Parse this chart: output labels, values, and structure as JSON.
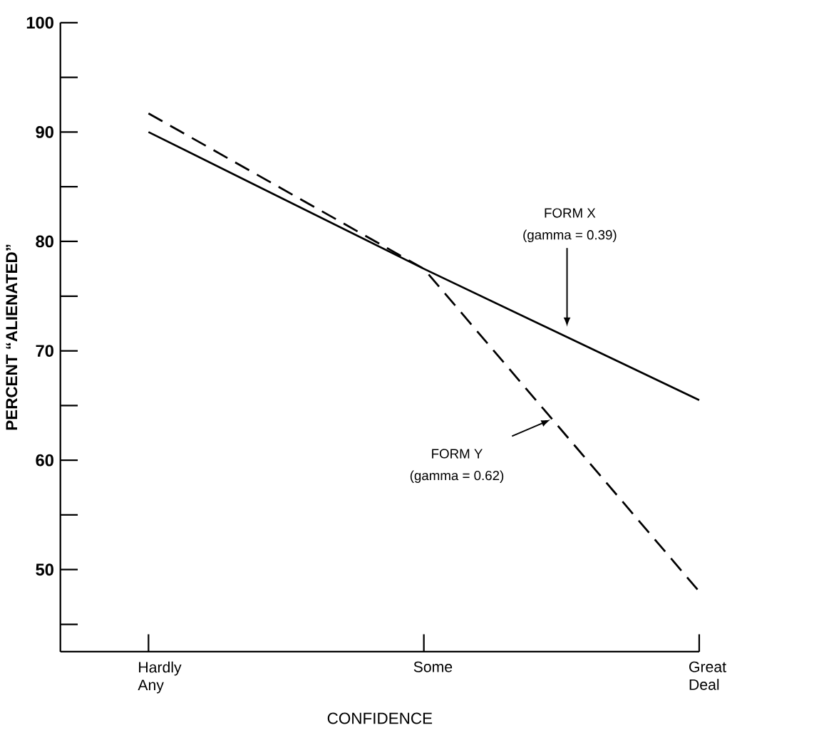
{
  "chart_data": {
    "type": "line",
    "xlabel": "CONFIDENCE",
    "ylabel": "PERCENT  “ALIENATED”",
    "categories": [
      "Hardly Any",
      "Some",
      "Great Deal"
    ],
    "series": [
      {
        "color": "#000000",
        "line_style": "solid",
        "values": [
          90,
          77.5,
          65.5
        ]
      },
      {
        "color": "#000000",
        "line_style": "dashed",
        "values": [
          91.7,
          77.5,
          48
        ]
      }
    ],
    "annotations": [
      "FORM X",
      "(gamma = 0.39)",
      "FORM Y",
      "(gamma = 0.62)"
    ],
    "ylim": [
      42.5,
      100
    ],
    "yticks": [
      {
        "value": 45,
        "label": null
      },
      50,
      {
        "value": 55,
        "label": null
      },
      60,
      {
        "value": 65,
        "label": null
      },
      70,
      {
        "value": 75,
        "label": null
      },
      80,
      {
        "value": 85,
        "label": null
      },
      90,
      {
        "value": 95,
        "label": null
      },
      100
    ],
    "marker": "none",
    "grid": false
  }
}
